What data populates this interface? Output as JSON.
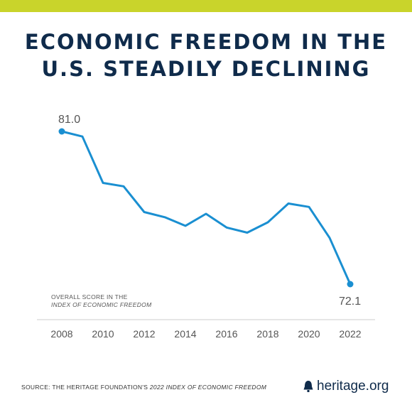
{
  "title_line1": "ECONOMIC FREEDOM IN THE",
  "title_line2": "U.S. STEADILY DECLINING",
  "axis_note_line1": "OVERALL SCORE IN THE",
  "axis_note_line2": "INDEX OF ECONOMIC FREEDOM",
  "source_prefix": "SOURCE: THE HERITAGE FOUNDATION'S ",
  "source_italic": "2022 INDEX OF ECONOMIC FREEDOM",
  "logo_text": "heritage.org",
  "colors": {
    "accent_bar": "#c9d42b",
    "line": "#1a8fd1",
    "title": "#0f2b4b"
  },
  "chart_data": {
    "type": "line",
    "x": [
      2008,
      2009,
      2010,
      2011,
      2012,
      2013,
      2014,
      2015,
      2016,
      2017,
      2018,
      2019,
      2020,
      2021,
      2022
    ],
    "values": [
      81.0,
      80.7,
      78.0,
      77.8,
      76.3,
      76.0,
      75.5,
      76.2,
      75.4,
      75.1,
      75.7,
      76.8,
      76.6,
      74.8,
      72.1
    ],
    "tick_labels": [
      "2008",
      "2010",
      "2012",
      "2014",
      "2016",
      "2018",
      "2020",
      "2022"
    ],
    "endpoint_labels": [
      "81.0",
      "72.1"
    ],
    "ylim": [
      72.1,
      81.0
    ],
    "grid": false
  }
}
